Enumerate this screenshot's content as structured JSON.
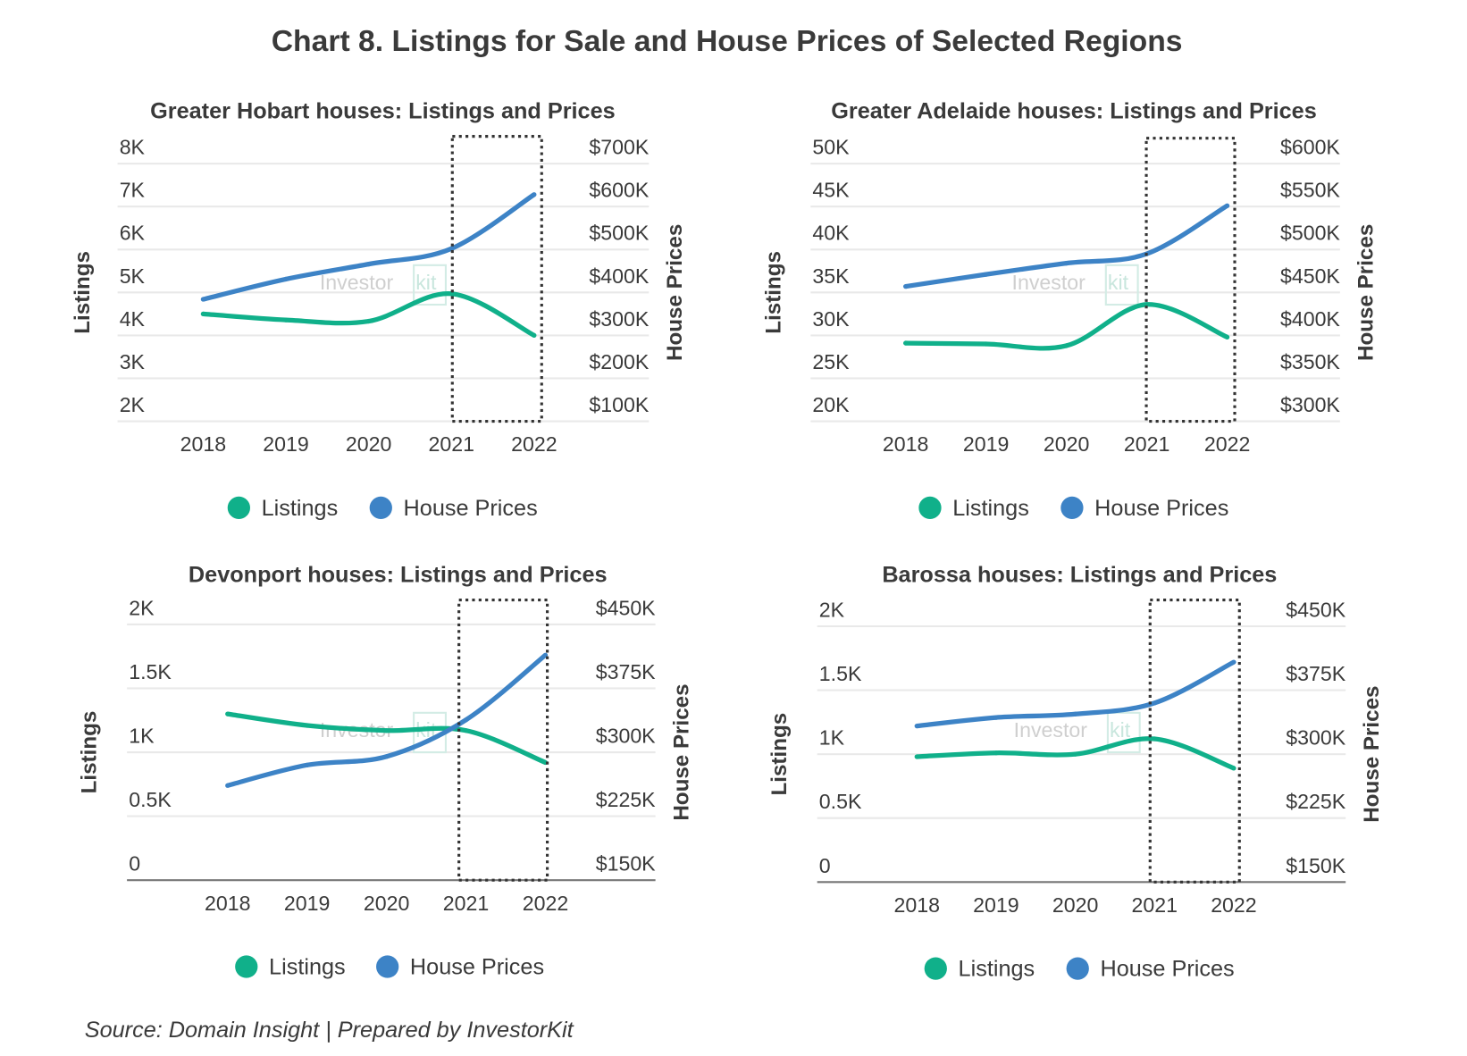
{
  "title": "Chart 8. Listings for Sale and House Prices of Selected Regions",
  "source": "Source: Domain Insight | Prepared by InvestorKit",
  "watermark": "InvestorKit",
  "colors": {
    "listings": "#10b08a",
    "prices": "#3d83c6",
    "grid": "#e9e9e9",
    "box": "#333333"
  },
  "chart_data": [
    {
      "type": "line",
      "title": "Greater Hobart houses: Listings and Prices",
      "categories": [
        "2018",
        "2019",
        "2020",
        "2021",
        "2022"
      ],
      "ylabel": "Listings",
      "y2label": "House Prices",
      "y_ticks": [
        "2K",
        "3K",
        "4K",
        "5K",
        "6K",
        "7K",
        "8K"
      ],
      "ylim": [
        2000,
        8000
      ],
      "y2_ticks": [
        "$100K",
        "$200K",
        "$300K",
        "$400K",
        "$500K",
        "$600K",
        "$700K"
      ],
      "y2lim": [
        100000,
        700000
      ],
      "series": [
        {
          "name": "Listings",
          "axis": "left",
          "values": [
            4500,
            4360,
            4330,
            4970,
            4000
          ]
        },
        {
          "name": "House Prices",
          "axis": "right",
          "values": [
            384000,
            431000,
            466000,
            502000,
            628000
          ]
        }
      ],
      "highlight": [
        "2021",
        "2022"
      ],
      "legend": [
        "Listings",
        "House Prices"
      ],
      "legend_position": "bottom"
    },
    {
      "type": "line",
      "title": "Greater Adelaide houses: Listings and Prices",
      "categories": [
        "2018",
        "2019",
        "2020",
        "2021",
        "2022"
      ],
      "ylabel": "Listings",
      "y2label": "House Prices",
      "y_ticks": [
        "20K",
        "25K",
        "30K",
        "35K",
        "40K",
        "45K",
        "50K"
      ],
      "ylim": [
        20000,
        50000
      ],
      "y2_ticks": [
        "$300K",
        "$350K",
        "$400K",
        "$450K",
        "$500K",
        "$550K",
        "$600K"
      ],
      "y2lim": [
        300000,
        600000
      ],
      "series": [
        {
          "name": "Listings",
          "axis": "left",
          "values": [
            29100,
            29000,
            28800,
            33600,
            29800
          ]
        },
        {
          "name": "House Prices",
          "axis": "right",
          "values": [
            457000,
            471000,
            484000,
            495000,
            551000
          ]
        }
      ],
      "highlight": [
        "2021",
        "2022"
      ],
      "legend": [
        "Listings",
        "House Prices"
      ],
      "legend_position": "bottom"
    },
    {
      "type": "line",
      "title": "Devonport houses: Listings and Prices",
      "categories": [
        "2018",
        "2019",
        "2020",
        "2021",
        "2022"
      ],
      "ylabel": "Listings",
      "y2label": "House Prices",
      "y_ticks": [
        "0",
        "0.5K",
        "1K",
        "1.5K",
        "2K"
      ],
      "ylim": [
        0,
        2000
      ],
      "y2_ticks": [
        "$150K",
        "$225K",
        "$300K",
        "$375K",
        "$450K"
      ],
      "y2lim": [
        150000,
        450000
      ],
      "series": [
        {
          "name": "Listings",
          "axis": "left",
          "values": [
            1300,
            1210,
            1170,
            1170,
            920
          ]
        },
        {
          "name": "House Prices",
          "axis": "right",
          "values": [
            261000,
            285000,
            295000,
            338000,
            414000
          ]
        }
      ],
      "highlight": [
        "2021",
        "2022"
      ],
      "legend": [
        "Listings",
        "House Prices"
      ],
      "legend_position": "bottom"
    },
    {
      "type": "line",
      "title": "Barossa houses: Listings and Prices",
      "categories": [
        "2018",
        "2019",
        "2020",
        "2021",
        "2022"
      ],
      "ylabel": "Listings",
      "y2label": "House Prices",
      "y_ticks": [
        "0",
        "0.5K",
        "1K",
        "1.5K",
        "2K"
      ],
      "ylim": [
        0,
        2000
      ],
      "y2_ticks": [
        "$150K",
        "$225K",
        "$300K",
        "$375K",
        "$450K"
      ],
      "y2lim": [
        150000,
        450000
      ],
      "series": [
        {
          "name": "Listings",
          "axis": "left",
          "values": [
            980,
            1010,
            1000,
            1120,
            890
          ]
        },
        {
          "name": "House Prices",
          "axis": "right",
          "values": [
            333000,
            343000,
            347000,
            360000,
            408000
          ]
        }
      ],
      "highlight": [
        "2021",
        "2022"
      ],
      "legend": [
        "Listings",
        "House Prices"
      ],
      "legend_position": "bottom"
    }
  ]
}
